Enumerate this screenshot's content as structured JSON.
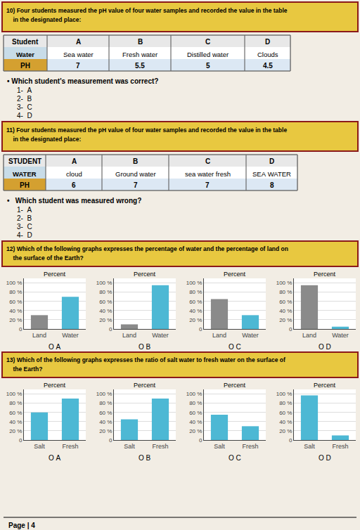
{
  "chart_data": [
    {
      "type": "bar",
      "title": "Percent",
      "categories": [
        "Land",
        "Water"
      ],
      "values": [
        30,
        70
      ],
      "colors": [
        "#8a8a8a",
        "#4db8d4"
      ],
      "ylim": [
        0,
        110
      ],
      "yticks": [
        0,
        {
          "value": 20,
          "label": "20 %"
        },
        {
          "value": 40,
          "label": "40 %"
        },
        {
          "value": 60,
          "label": "60 %"
        },
        {
          "value": 80,
          "label": "80 %"
        },
        {
          "value": 100,
          "label": "100 %"
        }
      ],
      "grid": true,
      "annotations": [
        "O A"
      ]
    },
    {
      "type": "bar",
      "title": "Percent",
      "categories": [
        "Land",
        "Water"
      ],
      "values": [
        10,
        95
      ],
      "colors": [
        "#8a8a8a",
        "#4db8d4"
      ],
      "ylim": [
        0,
        110
      ],
      "yticks": [
        0,
        {
          "value": 20,
          "label": "20 %"
        },
        {
          "value": 40,
          "label": "40 %"
        },
        {
          "value": 60,
          "label": "60 %"
        },
        {
          "value": 80,
          "label": "80 %"
        },
        {
          "value": 100,
          "label": "100 %"
        }
      ],
      "grid": true,
      "annotations": [
        "O B"
      ]
    },
    {
      "type": "bar",
      "title": "Percent",
      "categories": [
        "Land",
        "Water"
      ],
      "values": [
        65,
        30
      ],
      "colors": [
        "#8a8a8a",
        "#4db8d4"
      ],
      "ylim": [
        0,
        110
      ],
      "yticks": [
        0,
        {
          "value": 20,
          "label": "20 %"
        },
        {
          "value": 40,
          "label": "40 %"
        },
        {
          "value": 60,
          "label": "60 %"
        },
        {
          "value": 80,
          "label": "80 %"
        },
        {
          "value": 100,
          "label": "100 %"
        }
      ],
      "grid": true,
      "annotations": [
        "O C"
      ]
    },
    {
      "type": "bar",
      "title": "Percent",
      "categories": [
        "Land",
        "Water"
      ],
      "values": [
        95,
        5
      ],
      "colors": [
        "#8a8a8a",
        "#4db8d4"
      ],
      "ylim": [
        0,
        110
      ],
      "yticks": [
        0,
        {
          "value": 20,
          "label": "20 %"
        },
        {
          "value": 40,
          "label": "40 %"
        },
        {
          "value": 60,
          "label": "60 %"
        },
        {
          "value": 80,
          "label": "80 %"
        },
        {
          "value": 100,
          "label": "100 %"
        }
      ],
      "grid": true,
      "annotations": [
        "O D"
      ]
    },
    {
      "type": "bar",
      "title": "Percent",
      "categories": [
        "Salt",
        "Fresh"
      ],
      "values": [
        60,
        90
      ],
      "colors": [
        "#4db8d4",
        "#4db8d4"
      ],
      "ylim": [
        0,
        110
      ],
      "yticks": [
        0,
        {
          "value": 20,
          "label": "20 %"
        },
        {
          "value": 40,
          "label": "40 %"
        },
        {
          "value": 60,
          "label": "60 %"
        },
        {
          "value": 80,
          "label": "80 %"
        },
        {
          "value": 100,
          "label": "100 %"
        }
      ],
      "grid": true,
      "annotations": [
        "O A"
      ]
    },
    {
      "type": "bar",
      "title": "Percent",
      "categories": [
        "Salt",
        "Fresh"
      ],
      "values": [
        45,
        90
      ],
      "colors": [
        "#4db8d4",
        "#4db8d4"
      ],
      "ylim": [
        0,
        110
      ],
      "yticks": [
        0,
        {
          "value": 20,
          "label": "20 %"
        },
        {
          "value": 40,
          "label": "40 %"
        },
        {
          "value": 60,
          "label": "60 %"
        },
        {
          "value": 80,
          "label": "80 %"
        },
        {
          "value": 100,
          "label": "100 %"
        }
      ],
      "grid": true,
      "annotations": [
        "O B"
      ]
    },
    {
      "type": "bar",
      "title": "Percent",
      "categories": [
        "Salt",
        "Fresh"
      ],
      "values": [
        55,
        30
      ],
      "colors": [
        "#4db8d4",
        "#4db8d4"
      ],
      "ylim": [
        0,
        110
      ],
      "yticks": [
        0,
        {
          "value": 20,
          "label": "20 %"
        },
        {
          "value": 40,
          "label": "40 %"
        },
        {
          "value": 60,
          "label": "60 %"
        },
        {
          "value": 80,
          "label": "80 %"
        },
        {
          "value": 100,
          "label": "100 %"
        }
      ],
      "grid": true,
      "annotations": [
        "O C"
      ]
    },
    {
      "type": "bar",
      "title": "Percent",
      "categories": [
        "Salt",
        "Fresh"
      ],
      "values": [
        97,
        10
      ],
      "colors": [
        "#4db8d4",
        "#4db8d4"
      ],
      "ylim": [
        0,
        110
      ],
      "yticks": [
        0,
        {
          "value": 20,
          "label": "20 %"
        },
        {
          "value": 40,
          "label": "40 %"
        },
        {
          "value": 60,
          "label": "60 %"
        },
        {
          "value": 80,
          "label": "80 %"
        },
        {
          "value": 100,
          "label": "100 %"
        }
      ],
      "grid": true,
      "annotations": [
        "O D"
      ]
    }
  ],
  "annotations": [
    {
      "header": [
        "10) Four students measured the pH value of four water samples and recorded the value in the table",
        "    in the designated place:"
      ],
      "table": {
        "headers": [
          "Student",
          "A",
          "B",
          "C",
          "D"
        ],
        "rows": [
          [
            "Water",
            "Sea water",
            "Fresh water",
            "Distilled water",
            "Clouds"
          ],
          [
            "PH",
            "7",
            "5.5",
            "5",
            "4.5"
          ]
        ]
      },
      "question": "• Which student's measurement was correct?",
      "choices": [
        "1-  A",
        "2-  B",
        "3-  C",
        "4-  D"
      ]
    },
    {
      "header": [
        "11) Four students measured the pH value of four water samples and recorded the value in the table",
        "    in the designated place:"
      ],
      "table": {
        "headers": [
          "STUDENT",
          "A",
          "B",
          "C",
          "D"
        ],
        "rows": [
          [
            "WATER",
            "cloud",
            "Ground water",
            "sea water fresh",
            "SEA WATER"
          ],
          [
            "PH",
            "6",
            "7",
            "7",
            "8"
          ]
        ]
      },
      "question": "•   Which student was measured wrong?",
      "choices": [
        "1-  A",
        "2-  B",
        "3-  C",
        "4-  D"
      ]
    },
    {
      "header": [
        "12) Which of the following graphs expresses the percentage of water and the percentage of land on",
        "    the surface of the Earth?"
      ]
    },
    {
      "header": [
        "13) Which of the following graphs expresses the ratio of salt water to fresh water on the surface of",
        "    the Earth?"
      ]
    }
  ],
  "footer": "Page | 4",
  "colors": {
    "background": "#f2ede4",
    "header": "#e8c840",
    "header_border": "#8b1a1a",
    "table_border": "#666666",
    "table_header": "#e8e8e8",
    "water_cell": "#c8dce8",
    "ph_cell": "#d4a030",
    "ph_row": "#dce8f4"
  }
}
